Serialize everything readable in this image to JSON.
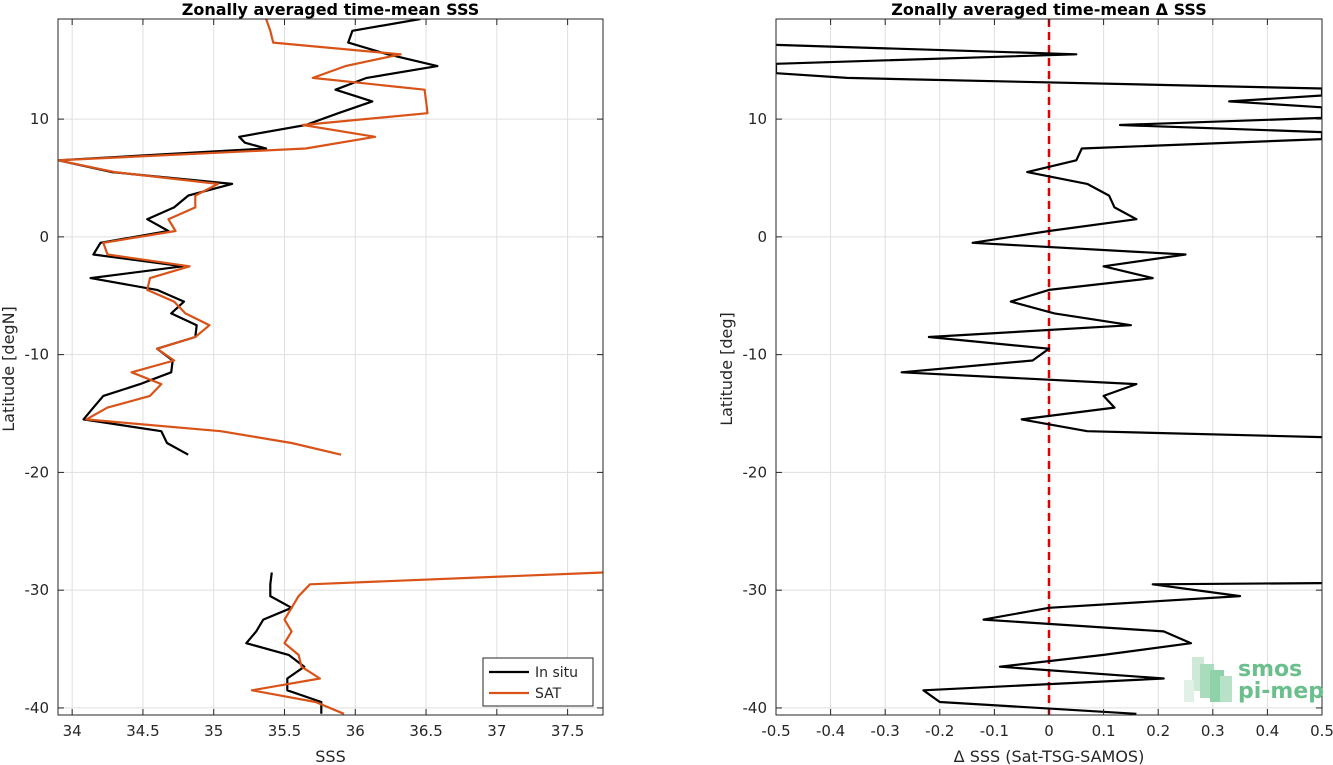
{
  "chart_data": [
    {
      "type": "line",
      "title": "Zonally averaged time-mean SSS",
      "xlabel": "SSS",
      "ylabel": "Latitude [degN]",
      "xlim": [
        33.9,
        37.75
      ],
      "ylim": [
        -40.6,
        18.5
      ],
      "xticks": [
        34,
        34.5,
        35,
        35.5,
        36,
        36.5,
        37,
        37.5
      ],
      "xtick_labels": [
        "34",
        "34.5",
        "35",
        "35.5",
        "36",
        "36.5",
        "37",
        "37.5"
      ],
      "yticks": [
        -40,
        -30,
        -20,
        -10,
        0,
        10
      ],
      "ytick_labels": [
        "-40",
        "-30",
        "-20",
        "-10",
        "0",
        "10"
      ],
      "grid": true,
      "legend_position": "bottom-right",
      "series": [
        {
          "name": "In situ",
          "color": "#000000",
          "points": [
            [
              36.46,
              18.5
            ],
            [
              35.98,
              17.5
            ],
            [
              35.95,
              16.5
            ],
            [
              36.23,
              15.5
            ],
            [
              36.58,
              14.5
            ],
            [
              36.08,
              13.5
            ],
            [
              35.86,
              12.5
            ],
            [
              36.12,
              11.5
            ],
            [
              35.88,
              10.5
            ],
            [
              35.65,
              9.5
            ],
            [
              35.18,
              8.5
            ],
            [
              35.22,
              8.0
            ],
            [
              35.37,
              7.5
            ],
            [
              33.9,
              6.5
            ],
            [
              34.28,
              5.5
            ],
            [
              35.13,
              4.5
            ],
            [
              34.82,
              3.5
            ],
            [
              34.72,
              2.5
            ],
            [
              34.53,
              1.5
            ],
            [
              34.68,
              0.5
            ],
            [
              34.2,
              -0.5
            ],
            [
              34.15,
              -1.5
            ],
            [
              34.78,
              -2.5
            ],
            [
              34.13,
              -3.5
            ],
            [
              34.6,
              -4.5
            ],
            [
              34.79,
              -5.5
            ],
            [
              34.7,
              -6.5
            ],
            [
              34.88,
              -7.5
            ],
            [
              34.87,
              -8.5
            ],
            [
              34.6,
              -9.5
            ],
            [
              34.71,
              -10.5
            ],
            [
              34.7,
              -11.5
            ],
            [
              34.48,
              -12.5
            ],
            [
              34.22,
              -13.5
            ],
            [
              34.15,
              -14.5
            ],
            [
              34.08,
              -15.5
            ],
            [
              34.63,
              -16.5
            ],
            [
              34.67,
              -17.5
            ],
            [
              34.82,
              -18.5
            ],
            null,
            [
              35.41,
              -28.5
            ],
            [
              35.4,
              -29.5
            ],
            [
              35.4,
              -30.5
            ],
            [
              35.55,
              -31.5
            ],
            [
              35.35,
              -32.5
            ],
            [
              35.3,
              -33.5
            ],
            [
              35.23,
              -34.5
            ],
            [
              35.53,
              -35.5
            ],
            [
              35.64,
              -36.5
            ],
            [
              35.52,
              -37.5
            ],
            [
              35.52,
              -38.5
            ],
            [
              35.76,
              -39.5
            ],
            [
              35.76,
              -40.5
            ]
          ]
        },
        {
          "name": "SAT",
          "color": "#d95319",
          "points": [
            [
              35.37,
              18.5
            ],
            [
              35.4,
              17.5
            ],
            [
              35.42,
              16.5
            ],
            [
              36.32,
              15.5
            ],
            [
              35.93,
              14.5
            ],
            [
              35.7,
              13.5
            ],
            [
              36.49,
              12.5
            ],
            [
              36.5,
              11.5
            ],
            [
              36.51,
              10.5
            ],
            [
              35.63,
              9.5
            ],
            [
              36.14,
              8.5
            ],
            [
              35.65,
              7.5
            ],
            [
              33.9,
              6.5
            ],
            [
              34.3,
              5.5
            ],
            [
              35.03,
              4.5
            ],
            [
              34.87,
              3.5
            ],
            [
              34.87,
              2.5
            ],
            [
              34.68,
              1.5
            ],
            [
              34.73,
              0.5
            ],
            [
              34.22,
              -0.5
            ],
            [
              34.25,
              -1.5
            ],
            [
              34.83,
              -2.5
            ],
            [
              34.55,
              -3.5
            ],
            [
              34.53,
              -4.5
            ],
            [
              34.72,
              -5.5
            ],
            [
              34.8,
              -6.5
            ],
            [
              34.97,
              -7.5
            ],
            [
              34.87,
              -8.5
            ],
            [
              34.6,
              -9.5
            ],
            [
              34.72,
              -10.5
            ],
            [
              34.42,
              -11.5
            ],
            [
              34.63,
              -12.5
            ],
            [
              34.55,
              -13.5
            ],
            [
              34.25,
              -14.5
            ],
            [
              34.1,
              -15.5
            ],
            [
              35.05,
              -16.5
            ],
            [
              35.55,
              -17.5
            ],
            [
              35.9,
              -18.5
            ],
            null,
            [
              37.75,
              -28.5
            ],
            [
              35.68,
              -29.5
            ],
            [
              35.6,
              -30.5
            ],
            [
              35.55,
              -31.5
            ],
            [
              35.5,
              -32.5
            ],
            [
              35.55,
              -33.5
            ],
            [
              35.5,
              -34.5
            ],
            [
              35.6,
              -35.5
            ],
            [
              35.62,
              -36.5
            ],
            [
              35.75,
              -37.5
            ],
            [
              35.27,
              -38.5
            ],
            [
              35.72,
              -39.5
            ],
            [
              35.92,
              -40.5
            ]
          ]
        }
      ]
    },
    {
      "type": "line",
      "title": "Zonally averaged time-mean Δ SSS",
      "xlabel": "Δ SSS (Sat-TSG-SAMOS)",
      "ylabel": "Latitude [deg]",
      "xlim": [
        -0.5,
        0.5
      ],
      "ylim": [
        -40.6,
        18.5
      ],
      "xticks": [
        -0.5,
        -0.4,
        -0.3,
        -0.2,
        -0.1,
        0,
        0.1,
        0.2,
        0.3,
        0.4,
        0.5
      ],
      "xtick_labels": [
        "-0.5",
        "-0.4",
        "-0.3",
        "-0.2",
        "-0.1",
        "0",
        "0.1",
        "0.2",
        "0.3",
        "0.4",
        "0.5"
      ],
      "yticks": [
        -40,
        -30,
        -20,
        -10,
        0,
        10
      ],
      "ytick_labels": [
        "-40",
        "-30",
        "-20",
        "-10",
        "0",
        "10"
      ],
      "grid": true,
      "reference_line": {
        "x": 0,
        "color": "#e00000",
        "style": "dashed"
      },
      "series": [
        {
          "name": "",
          "color": "#000000",
          "points": [
            [
              -0.5,
              16.3
            ],
            [
              0.05,
              15.5
            ],
            [
              -0.5,
              14.7
            ],
            [
              -0.5,
              13.9
            ],
            [
              -0.37,
              13.5
            ],
            [
              0.5,
              12.6
            ],
            [
              0.5,
              12.0
            ],
            [
              0.33,
              11.5
            ],
            [
              0.5,
              11.0
            ],
            [
              0.5,
              10.1
            ],
            [
              0.13,
              9.5
            ],
            [
              0.5,
              8.9
            ],
            [
              0.5,
              8.3
            ],
            [
              0.06,
              7.5
            ],
            [
              0.05,
              6.5
            ],
            [
              -0.04,
              5.5
            ],
            [
              0.07,
              4.5
            ],
            [
              0.11,
              3.5
            ],
            [
              0.12,
              2.5
            ],
            [
              0.16,
              1.5
            ],
            [
              0.0,
              0.5
            ],
            [
              -0.14,
              -0.5
            ],
            [
              0.25,
              -1.5
            ],
            [
              0.1,
              -2.5
            ],
            [
              0.19,
              -3.5
            ],
            [
              0.0,
              -4.5
            ],
            [
              -0.07,
              -5.5
            ],
            [
              0.01,
              -6.5
            ],
            [
              0.15,
              -7.5
            ],
            [
              -0.22,
              -8.5
            ],
            [
              0.0,
              -9.5
            ],
            [
              -0.03,
              -10.5
            ],
            [
              -0.27,
              -11.5
            ],
            [
              0.16,
              -12.5
            ],
            [
              0.1,
              -13.5
            ],
            [
              0.12,
              -14.5
            ],
            [
              -0.05,
              -15.5
            ],
            [
              0.07,
              -16.5
            ],
            [
              0.5,
              -17.0
            ],
            null,
            [
              0.5,
              -29.4
            ],
            [
              0.19,
              -29.5
            ],
            [
              0.35,
              -30.5
            ],
            [
              0.0,
              -31.5
            ],
            [
              -0.12,
              -32.5
            ],
            [
              0.21,
              -33.5
            ],
            [
              0.26,
              -34.5
            ],
            [
              0.1,
              -35.5
            ],
            [
              -0.09,
              -36.5
            ],
            [
              0.21,
              -37.5
            ],
            [
              -0.23,
              -38.5
            ],
            [
              -0.2,
              -39.5
            ],
            [
              0.16,
              -40.5
            ]
          ]
        }
      ]
    }
  ],
  "logo": {
    "line1": "smos",
    "line2": "pi-mep"
  }
}
